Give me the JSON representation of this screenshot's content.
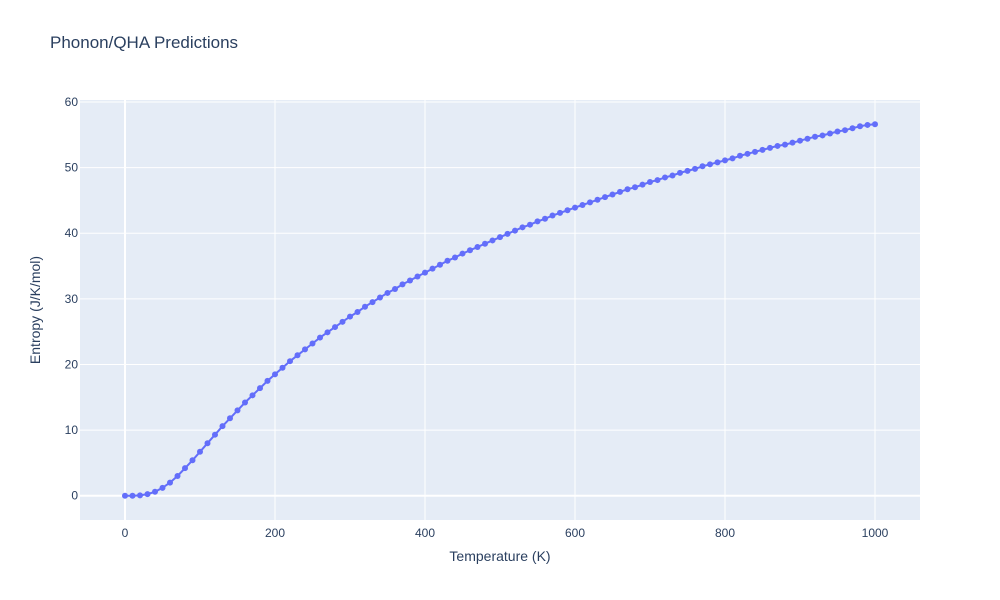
{
  "title": "Phonon/QHA Predictions",
  "chart_data": {
    "type": "scatter",
    "mode": "lines+markers",
    "title": "Phonon/QHA Predictions",
    "xlabel": "Temperature (K)",
    "ylabel": "Entropy (J/K/mol)",
    "xlim": [
      -60,
      1060
    ],
    "ylim": [
      -3.7,
      60.3
    ],
    "x_ticks": [
      0,
      200,
      400,
      600,
      800,
      1000
    ],
    "y_ticks": [
      0,
      10,
      20,
      30,
      40,
      50,
      60
    ],
    "grid": true,
    "legend": "none",
    "colors": {
      "series": "#636efa",
      "plot_bg": "#e5ecf6",
      "grid": "#ffffff",
      "text": "#2a3f5f"
    },
    "series": [
      {
        "x": [
          0,
          10,
          20,
          30,
          40,
          50,
          60,
          70,
          80,
          90,
          100,
          110,
          120,
          130,
          140,
          150,
          160,
          170,
          180,
          190,
          200,
          210,
          220,
          230,
          240,
          250,
          260,
          270,
          280,
          290,
          300,
          310,
          320,
          330,
          340,
          350,
          360,
          370,
          380,
          390,
          400,
          410,
          420,
          430,
          440,
          450,
          460,
          470,
          480,
          490,
          500,
          510,
          520,
          530,
          540,
          550,
          560,
          570,
          580,
          590,
          600,
          610,
          620,
          630,
          640,
          650,
          660,
          670,
          680,
          690,
          700,
          710,
          720,
          730,
          740,
          750,
          760,
          770,
          780,
          790,
          800,
          810,
          820,
          830,
          840,
          850,
          860,
          870,
          880,
          890,
          900,
          910,
          920,
          930,
          940,
          950,
          960,
          970,
          980,
          990,
          1000
        ],
        "y": [
          0,
          0,
          0.05,
          0.25,
          0.6,
          1.2,
          2.0,
          3.0,
          4.2,
          5.4,
          6.7,
          8.0,
          9.3,
          10.6,
          11.8,
          13.0,
          14.2,
          15.3,
          16.4,
          17.5,
          18.5,
          19.5,
          20.5,
          21.4,
          22.3,
          23.2,
          24.1,
          24.9,
          25.7,
          26.5,
          27.3,
          28.0,
          28.8,
          29.5,
          30.2,
          30.9,
          31.5,
          32.2,
          32.8,
          33.4,
          34.0,
          34.6,
          35.2,
          35.8,
          36.3,
          36.9,
          37.4,
          37.9,
          38.4,
          38.9,
          39.4,
          39.9,
          40.4,
          40.9,
          41.3,
          41.8,
          42.2,
          42.7,
          43.1,
          43.5,
          43.9,
          44.3,
          44.7,
          45.1,
          45.5,
          45.9,
          46.3,
          46.7,
          47.0,
          47.4,
          47.8,
          48.1,
          48.5,
          48.8,
          49.2,
          49.5,
          49.8,
          50.2,
          50.5,
          50.8,
          51.1,
          51.4,
          51.8,
          52.1,
          52.4,
          52.7,
          53.0,
          53.3,
          53.5,
          53.8,
          54.1,
          54.4,
          54.7,
          54.9,
          55.2,
          55.5,
          55.7,
          56.0,
          56.3,
          56.5,
          56.6
        ]
      }
    ]
  }
}
